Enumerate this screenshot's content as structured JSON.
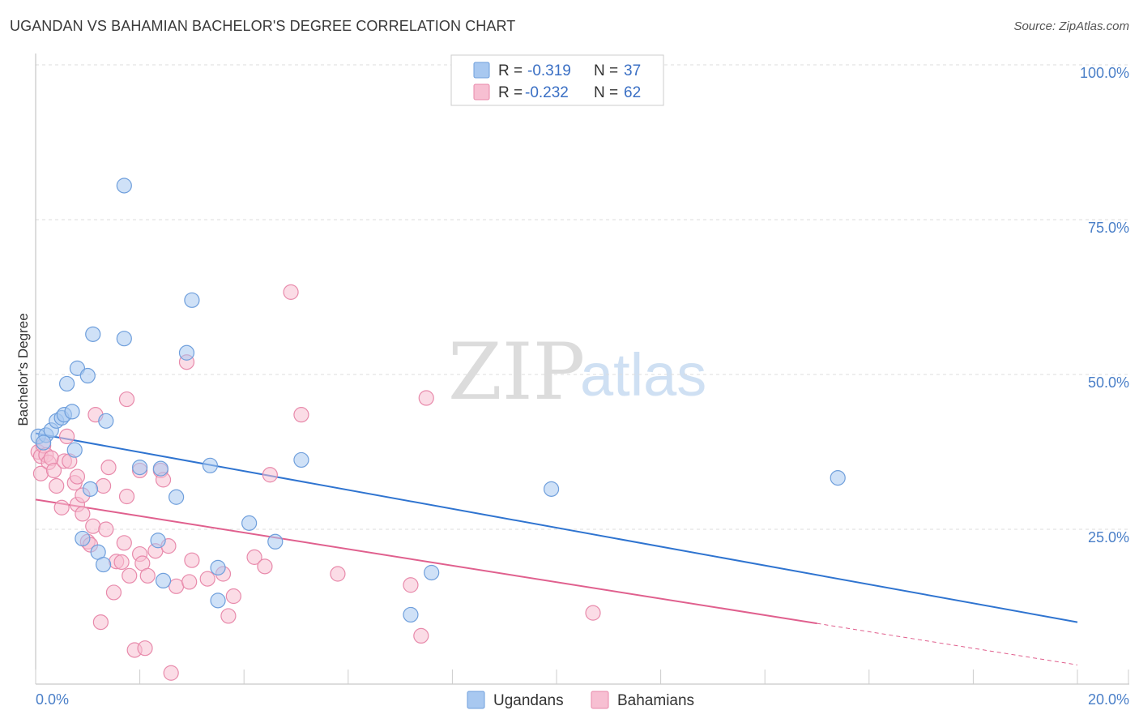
{
  "header": {
    "title": "UGANDAN VS BAHAMIAN BACHELOR'S DEGREE CORRELATION CHART",
    "source": "Source: ZipAtlas.com"
  },
  "watermark": {
    "zip": "ZIP",
    "atlas": "atlas"
  },
  "legend": {
    "rows": [
      {
        "r_label": "R =",
        "r_value": "-0.319",
        "n_label": "N =",
        "n_value": "37"
      },
      {
        "r_label": "R =",
        "r_value": "-0.232",
        "n_label": "N =",
        "n_value": "62"
      }
    ]
  },
  "chart_data": {
    "type": "scatter",
    "title": "UGANDAN VS BAHAMIAN BACHELOR'S DEGREE CORRELATION CHART",
    "xlabel": "",
    "ylabel": "Bachelor's Degree",
    "xlim": [
      0,
      20
    ],
    "ylim": [
      0,
      100
    ],
    "x_tick_labels": [
      "0.0%",
      "20.0%"
    ],
    "y_tick_values": [
      25,
      50,
      75,
      100
    ],
    "y_tick_labels": [
      "25.0%",
      "50.0%",
      "75.0%",
      "100.0%"
    ],
    "grid": true,
    "colors": {
      "ugandans_fill": "#a8c8f0",
      "ugandans_stroke": "#6f9fdc",
      "ugandans_line": "#2f74d0",
      "bahamians_fill": "#f7bfd2",
      "bahamians_stroke": "#e88aab",
      "bahamians_line": "#e0608e"
    },
    "series": [
      {
        "name": "Ugandans",
        "r": -0.319,
        "n": 37,
        "trend": {
          "x": [
            0,
            20
          ],
          "y": [
            40.5,
            10.0
          ]
        },
        "points": [
          {
            "x": 0.05,
            "y": 40.0
          },
          {
            "x": 0.2,
            "y": 40.2
          },
          {
            "x": 0.15,
            "y": 39.0
          },
          {
            "x": 0.3,
            "y": 41.0
          },
          {
            "x": 0.4,
            "y": 42.5
          },
          {
            "x": 0.5,
            "y": 43.0
          },
          {
            "x": 0.55,
            "y": 43.5
          },
          {
            "x": 0.7,
            "y": 44.0
          },
          {
            "x": 0.6,
            "y": 48.5
          },
          {
            "x": 0.8,
            "y": 51.0
          },
          {
            "x": 1.0,
            "y": 49.8
          },
          {
            "x": 1.1,
            "y": 56.5
          },
          {
            "x": 0.75,
            "y": 37.8
          },
          {
            "x": 1.35,
            "y": 42.5
          },
          {
            "x": 1.7,
            "y": 80.5
          },
          {
            "x": 1.7,
            "y": 55.8
          },
          {
            "x": 2.0,
            "y": 35.0
          },
          {
            "x": 2.4,
            "y": 34.8
          },
          {
            "x": 2.7,
            "y": 30.2
          },
          {
            "x": 2.9,
            "y": 53.5
          },
          {
            "x": 3.0,
            "y": 62.0
          },
          {
            "x": 1.05,
            "y": 31.5
          },
          {
            "x": 0.9,
            "y": 23.5
          },
          {
            "x": 1.2,
            "y": 21.3
          },
          {
            "x": 1.3,
            "y": 19.3
          },
          {
            "x": 2.35,
            "y": 23.2
          },
          {
            "x": 2.45,
            "y": 16.7
          },
          {
            "x": 3.35,
            "y": 35.3
          },
          {
            "x": 3.5,
            "y": 18.8
          },
          {
            "x": 3.5,
            "y": 13.5
          },
          {
            "x": 4.1,
            "y": 26.0
          },
          {
            "x": 4.6,
            "y": 23.0
          },
          {
            "x": 5.1,
            "y": 36.2
          },
          {
            "x": 7.2,
            "y": 11.2
          },
          {
            "x": 7.6,
            "y": 18.0
          },
          {
            "x": 9.9,
            "y": 31.5
          },
          {
            "x": 15.4,
            "y": 33.3
          }
        ]
      },
      {
        "name": "Bahamians",
        "r": -0.232,
        "n": 62,
        "trend": {
          "x": [
            0,
            15.0
          ],
          "y": [
            29.8,
            9.8
          ]
        },
        "trend_dashed": {
          "x": [
            15.0,
            20.0
          ],
          "y": [
            9.8,
            3.1
          ]
        },
        "points": [
          {
            "x": 0.05,
            "y": 37.5
          },
          {
            "x": 0.1,
            "y": 36.8
          },
          {
            "x": 0.15,
            "y": 38.5
          },
          {
            "x": 0.2,
            "y": 37.0
          },
          {
            "x": 0.25,
            "y": 35.8
          },
          {
            "x": 0.3,
            "y": 36.5
          },
          {
            "x": 0.1,
            "y": 34.0
          },
          {
            "x": 0.35,
            "y": 34.5
          },
          {
            "x": 0.4,
            "y": 32.0
          },
          {
            "x": 0.5,
            "y": 28.5
          },
          {
            "x": 0.55,
            "y": 36.0
          },
          {
            "x": 0.6,
            "y": 40.0
          },
          {
            "x": 0.65,
            "y": 36.0
          },
          {
            "x": 0.75,
            "y": 32.5
          },
          {
            "x": 0.8,
            "y": 29.0
          },
          {
            "x": 0.8,
            "y": 33.5
          },
          {
            "x": 0.9,
            "y": 30.5
          },
          {
            "x": 0.9,
            "y": 27.5
          },
          {
            "x": 1.0,
            "y": 23.0
          },
          {
            "x": 1.05,
            "y": 22.5
          },
          {
            "x": 1.1,
            "y": 25.5
          },
          {
            "x": 1.15,
            "y": 43.5
          },
          {
            "x": 1.3,
            "y": 32.0
          },
          {
            "x": 1.35,
            "y": 25.0
          },
          {
            "x": 1.4,
            "y": 35.0
          },
          {
            "x": 1.5,
            "y": 14.8
          },
          {
            "x": 1.25,
            "y": 10.0
          },
          {
            "x": 1.55,
            "y": 19.8
          },
          {
            "x": 1.65,
            "y": 19.7
          },
          {
            "x": 1.7,
            "y": 22.8
          },
          {
            "x": 1.75,
            "y": 46.0
          },
          {
            "x": 1.75,
            "y": 30.3
          },
          {
            "x": 1.8,
            "y": 17.5
          },
          {
            "x": 1.9,
            "y": 5.5
          },
          {
            "x": 2.0,
            "y": 21.0
          },
          {
            "x": 2.0,
            "y": 34.5
          },
          {
            "x": 2.05,
            "y": 19.5
          },
          {
            "x": 2.1,
            "y": 5.8
          },
          {
            "x": 2.15,
            "y": 17.5
          },
          {
            "x": 2.3,
            "y": 21.5
          },
          {
            "x": 2.4,
            "y": 34.5
          },
          {
            "x": 2.45,
            "y": 33.0
          },
          {
            "x": 2.55,
            "y": 22.3
          },
          {
            "x": 2.6,
            "y": 1.8
          },
          {
            "x": 2.7,
            "y": 15.8
          },
          {
            "x": 2.9,
            "y": 52.0
          },
          {
            "x": 2.95,
            "y": 16.5
          },
          {
            "x": 3.0,
            "y": 20.0
          },
          {
            "x": 3.3,
            "y": 17.0
          },
          {
            "x": 3.6,
            "y": 17.8
          },
          {
            "x": 3.7,
            "y": 11.0
          },
          {
            "x": 3.8,
            "y": 14.2
          },
          {
            "x": 4.2,
            "y": 20.5
          },
          {
            "x": 4.4,
            "y": 19.0
          },
          {
            "x": 4.5,
            "y": 33.8
          },
          {
            "x": 4.9,
            "y": 63.3
          },
          {
            "x": 5.1,
            "y": 43.5
          },
          {
            "x": 5.8,
            "y": 17.8
          },
          {
            "x": 7.2,
            "y": 16.0
          },
          {
            "x": 7.4,
            "y": 7.8
          },
          {
            "x": 7.5,
            "y": 46.2
          },
          {
            "x": 10.7,
            "y": 11.5
          }
        ]
      }
    ]
  }
}
